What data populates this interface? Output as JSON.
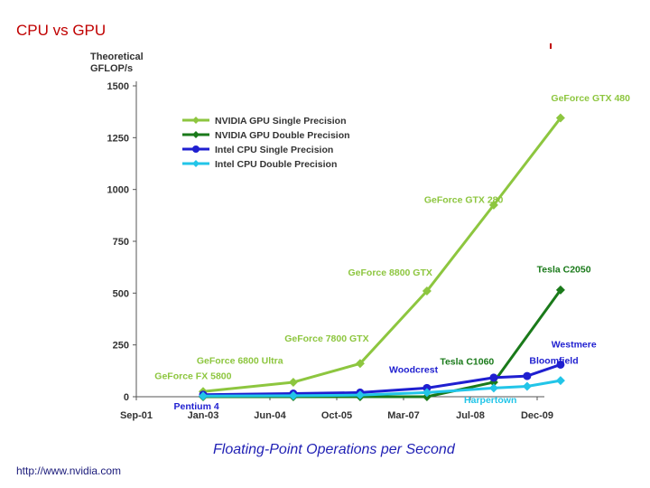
{
  "slide": {
    "title": "CPU vs GPU",
    "caption": "Floating-Point Operations per Second",
    "source": "http://www.nvidia.com"
  },
  "chart_data": {
    "type": "line",
    "ylabel": "Theoretical GFLOP/s",
    "ylim": [
      0,
      1500
    ],
    "yticks": [
      0,
      250,
      500,
      750,
      1000,
      1250,
      1500
    ],
    "categories": [
      "Sep-01",
      "Jan-03",
      "Jun-04",
      "Oct-05",
      "Mar-07",
      "Jul-08",
      "Dec-09"
    ],
    "grid": false,
    "legend_position": "top-left",
    "series": [
      {
        "name": "NVIDIA GPU Single Precision",
        "color": "#8dc63f",
        "marker": "diamond",
        "points": [
          [
            1.0,
            25
          ],
          [
            2.35,
            70
          ],
          [
            3.35,
            160
          ],
          [
            4.35,
            510
          ],
          [
            5.35,
            925
          ],
          [
            6.35,
            1345
          ]
        ]
      },
      {
        "name": "NVIDIA GPU Double Precision",
        "color": "#1a7a1a",
        "marker": "diamond",
        "points": [
          [
            1.0,
            0
          ],
          [
            2.35,
            0
          ],
          [
            3.35,
            0
          ],
          [
            4.35,
            0
          ],
          [
            5.35,
            70
          ],
          [
            6.35,
            515
          ]
        ]
      },
      {
        "name": "Intel CPU Single Precision",
        "color": "#1f1fd0",
        "marker": "circle",
        "points": [
          [
            1.0,
            10
          ],
          [
            2.35,
            15
          ],
          [
            3.35,
            20
          ],
          [
            4.35,
            42
          ],
          [
            5.35,
            92
          ],
          [
            5.85,
            100
          ],
          [
            6.35,
            155
          ]
        ]
      },
      {
        "name": "Intel CPU Double Precision",
        "color": "#22c5e8",
        "marker": "diamond",
        "points": [
          [
            1.0,
            3
          ],
          [
            2.35,
            5
          ],
          [
            3.35,
            8
          ],
          [
            4.35,
            20
          ],
          [
            5.35,
            42
          ],
          [
            5.85,
            50
          ],
          [
            6.35,
            78
          ]
        ]
      }
    ],
    "annotations": [
      {
        "text": "GeForce GTX 480",
        "x": 6.8,
        "y": 1425,
        "color": "#8dc63f"
      },
      {
        "text": "GeForce GTX 280",
        "x": 4.9,
        "y": 935,
        "color": "#8dc63f"
      },
      {
        "text": "GeForce 8800 GTX",
        "x": 3.8,
        "y": 585,
        "color": "#8dc63f"
      },
      {
        "text": "GeForce 7800 GTX",
        "x": 2.85,
        "y": 265,
        "color": "#8dc63f"
      },
      {
        "text": "GeForce 6800 Ultra",
        "x": 1.55,
        "y": 160,
        "color": "#8dc63f"
      },
      {
        "text": "GeForce FX 5800",
        "x": 0.85,
        "y": 85,
        "color": "#8dc63f"
      },
      {
        "text": "Tesla C2050",
        "x": 6.4,
        "y": 600,
        "color": "#1a7a1a"
      },
      {
        "text": "Tesla C1060",
        "x": 4.95,
        "y": 155,
        "color": "#1a7a1a"
      },
      {
        "text": "Bloomfield",
        "x": 6.25,
        "y": 160,
        "color": "#1f1fd0"
      },
      {
        "text": "Westmere",
        "x": 6.55,
        "y": 238,
        "color": "#1f1fd0"
      },
      {
        "text": "Woodcrest",
        "x": 4.15,
        "y": 115,
        "color": "#1f1fd0"
      },
      {
        "text": "Pentium 4",
        "x": 0.9,
        "y": -60,
        "color": "#1f1fd0"
      },
      {
        "text": "Harpertown",
        "x": 5.3,
        "y": -30,
        "color": "#22c5e8"
      }
    ]
  }
}
